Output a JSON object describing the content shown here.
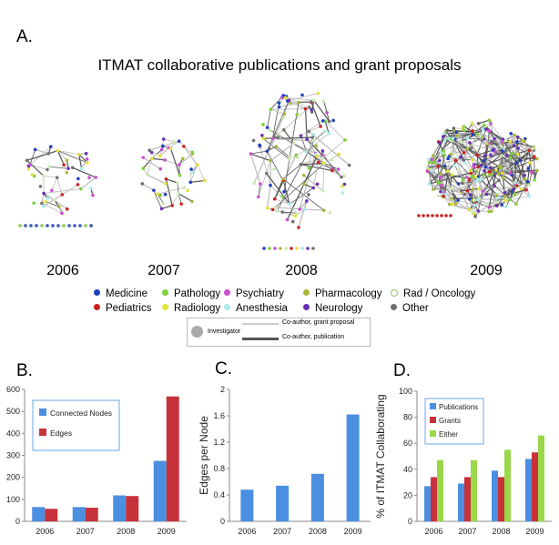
{
  "panels": {
    "a": "A.",
    "b": "B.",
    "c": "C.",
    "d": "D."
  },
  "network": {
    "title": "ITMAT collaborative publications and grant proposals",
    "years": [
      "2006",
      "2007",
      "2008",
      "2009"
    ]
  },
  "departments": [
    {
      "label": "Medicine",
      "color": "#1f3fbf"
    },
    {
      "label": "Pathology",
      "color": "#7dd23a"
    },
    {
      "label": "Psychiatry",
      "color": "#cc4ed1"
    },
    {
      "label": "Pharmacology",
      "color": "#a8b83a"
    },
    {
      "label": "Rad / Oncology",
      "color": "#cfe8b8"
    },
    {
      "label": "Pediatrics",
      "color": "#c8231e"
    },
    {
      "label": "Radiology",
      "color": "#e6e23c"
    },
    {
      "label": "Anesthesia",
      "color": "#a8ece8"
    },
    {
      "label": "Neurology",
      "color": "#6a2fb5"
    },
    {
      "label": "Other",
      "color": "#707070"
    }
  ],
  "edge_legend": {
    "investigator": "Investigator",
    "grant": "Co-author, grant proposal",
    "publication": "Co-author, publication"
  },
  "chart_data": [
    {
      "type": "bar",
      "categories": [
        "2006",
        "2007",
        "2008",
        "2009"
      ],
      "series": [
        {
          "name": "Connected Nodes",
          "values": [
            65,
            65,
            118,
            275
          ],
          "color": "#4a8fe0"
        },
        {
          "name": "Edges",
          "values": [
            57,
            62,
            115,
            568
          ],
          "color": "#c8323a"
        }
      ],
      "ylim": [
        0,
        600
      ],
      "yticks": [
        0,
        100,
        200,
        300,
        400,
        500,
        600
      ],
      "ylabel": "",
      "legend": "top-left"
    },
    {
      "type": "bar",
      "categories": [
        "2006",
        "2007",
        "2008",
        "2009"
      ],
      "values": [
        0.48,
        0.54,
        0.72,
        1.62
      ],
      "color": "#4a8fe0",
      "ylabel": "Edges per Node",
      "ylim": [
        0,
        2
      ],
      "yticks": [
        "0",
        "0.4",
        "0.8",
        "1.2",
        "1.6",
        "2"
      ]
    },
    {
      "type": "bar",
      "categories": [
        "2006",
        "2007",
        "2008",
        "2009"
      ],
      "series": [
        {
          "name": "Publications",
          "values": [
            27,
            29,
            39,
            48
          ],
          "color": "#4a8fe0"
        },
        {
          "name": "Grants",
          "values": [
            34,
            34,
            34,
            53
          ],
          "color": "#c8323a"
        },
        {
          "name": "Either",
          "values": [
            47,
            47,
            55,
            66
          ],
          "color": "#9ad84a"
        }
      ],
      "ylabel": "% of ITMAT Collaborating",
      "ylim": [
        0,
        100
      ],
      "yticks": [
        0,
        20,
        40,
        60,
        80,
        100
      ],
      "legend": "top-left"
    }
  ]
}
